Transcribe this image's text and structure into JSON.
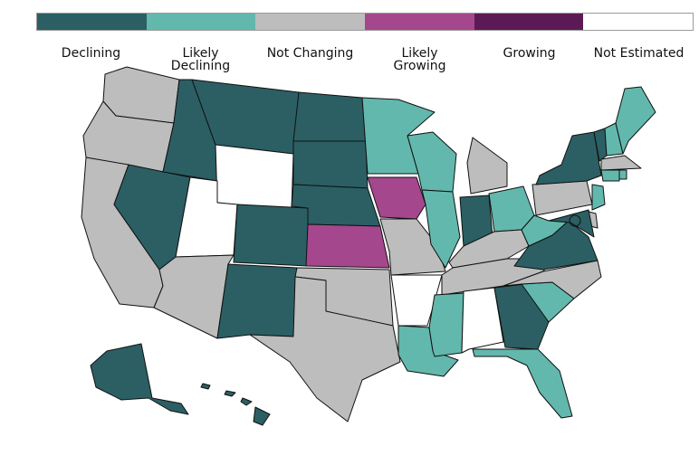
{
  "legend": {
    "items": [
      {
        "key": "declining",
        "label": "Declining",
        "color": "#2b5f63"
      },
      {
        "key": "likely_declining",
        "label": "Likely\nDeclining",
        "color": "#62b8ad"
      },
      {
        "key": "not_changing",
        "label": "Not Changing",
        "color": "#bdbdbd"
      },
      {
        "key": "likely_growing",
        "label": "Likely\nGrowing",
        "color": "#a5478d"
      },
      {
        "key": "growing",
        "label": "Growing",
        "color": "#5b1a55"
      },
      {
        "key": "not_estimated",
        "label": "Not Estimated",
        "color": "#ffffff"
      }
    ]
  },
  "states": {
    "WA": "not_changing",
    "OR": "not_changing",
    "CA": "not_changing",
    "NV": "declining",
    "ID": "declining",
    "MT": "declining",
    "WY": "not_estimated",
    "UT": "not_estimated",
    "AZ": "not_changing",
    "CO": "declining",
    "NM": "declining",
    "ND": "declining",
    "SD": "declining",
    "NE": "declining",
    "KS": "likely_growing",
    "OK": "not_changing",
    "TX": "not_changing",
    "MN": "likely_declining",
    "IA": "likely_growing",
    "MO": "not_changing",
    "AR": "not_estimated",
    "LA": "likely_declining",
    "WI": "likely_declining",
    "IL": "likely_declining",
    "MI": "not_changing",
    "IN": "declining",
    "OH": "likely_declining",
    "KY": "not_changing",
    "TN": "not_changing",
    "MS": "likely_declining",
    "AL": "not_estimated",
    "GA": "declining",
    "FL": "likely_declining",
    "SC": "likely_declining",
    "NC": "not_changing",
    "VA": "declining",
    "WV": "likely_declining",
    "PA": "not_changing",
    "NY": "declining",
    "VT": "declining",
    "NH": "likely_declining",
    "ME": "likely_declining",
    "MA": "not_changing",
    "CT": "likely_declining",
    "RI": "likely_declining",
    "NJ": "likely_declining",
    "DE": "not_changing",
    "MD": "declining",
    "DC": "declining",
    "AK": "declining",
    "HI": "declining"
  }
}
